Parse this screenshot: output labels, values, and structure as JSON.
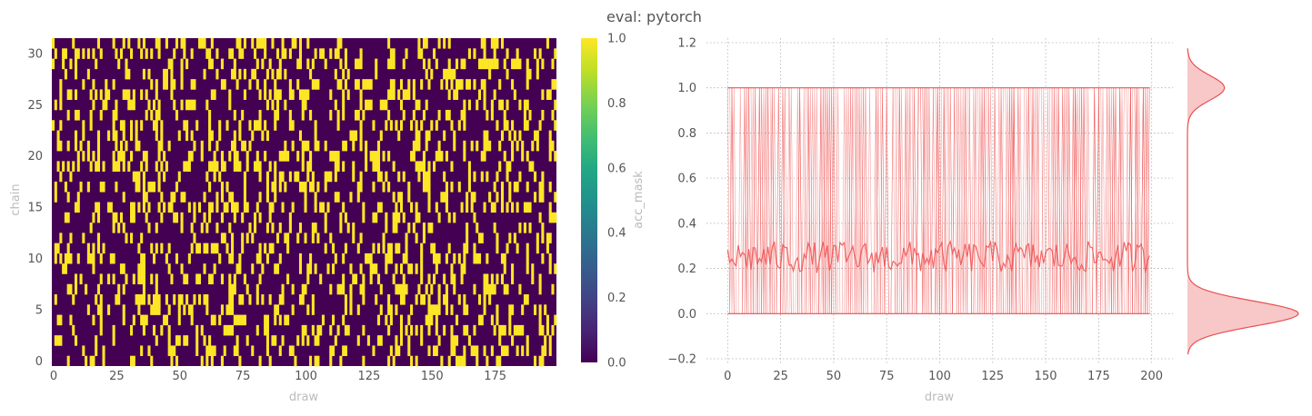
{
  "figure": {
    "title": "eval: pytorch"
  },
  "chart_data": [
    {
      "type": "heatmap",
      "name": "acc_mask heatmap",
      "xlabel": "draw",
      "ylabel": "chain",
      "x_ticks": [
        0,
        25,
        50,
        75,
        100,
        125,
        150,
        175
      ],
      "y_ticks": [
        0,
        5,
        10,
        15,
        20,
        25,
        30
      ],
      "xlim": [
        0,
        200
      ],
      "ylim": [
        0,
        32
      ],
      "n_draws": 200,
      "n_chains": 32,
      "acceptance_rate": 0.25,
      "colormap": "viridis",
      "colorbar": {
        "label": "acc_mask",
        "ticks": [
          "0.0",
          "0.2",
          "0.4",
          "0.6",
          "0.8",
          "1.0"
        ],
        "range": [
          0,
          1
        ]
      },
      "colors": {
        "low": "#440154",
        "high": "#fde725"
      }
    },
    {
      "type": "line",
      "name": "acc_mask trace",
      "xlabel": "draw",
      "ylabel": "",
      "x_ticks": [
        0,
        25,
        50,
        75,
        100,
        125,
        150,
        175,
        200
      ],
      "y_ticks": [
        "−0.2",
        "0.0",
        "0.2",
        "0.4",
        "0.6",
        "0.8",
        "1.0",
        "1.2"
      ],
      "xlim": [
        -10,
        210
      ],
      "ylim": [
        -0.22,
        1.22
      ],
      "grid": true,
      "series_style": {
        "color": "#f05555"
      },
      "mean_line_level": 0.25,
      "marginal_kde": {
        "modes": [
          0,
          1
        ],
        "weights": [
          0.75,
          0.25
        ],
        "fill": "#f8c8c8",
        "stroke": "#e85050"
      }
    }
  ]
}
